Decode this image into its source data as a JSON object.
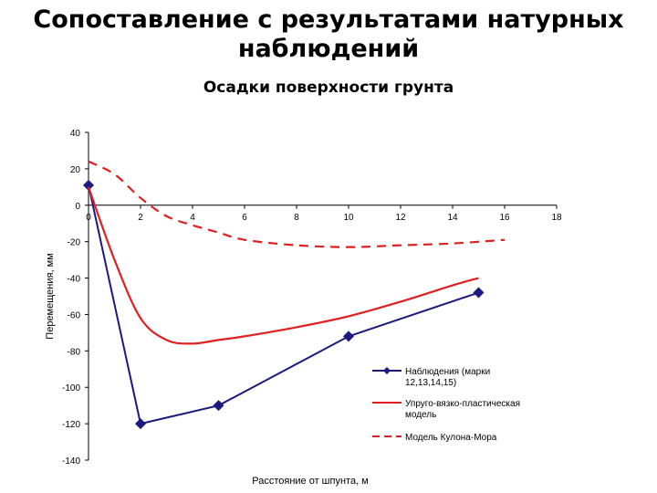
{
  "slide": {
    "title_line1": "Сопоставление с результатами натурных",
    "title_line2": "наблюдений"
  },
  "chart_data": {
    "type": "line",
    "title": "Осадки поверхности грунта",
    "xlabel": "Расстояние от шпунта, м",
    "ylabel": "Перемещения, мм",
    "xlim": [
      0,
      18
    ],
    "ylim": [
      -140,
      40
    ],
    "x_ticks": [
      "0",
      "2",
      "4",
      "6",
      "8",
      "10",
      "12",
      "14",
      "16",
      "18"
    ],
    "y_ticks": [
      "40",
      "20",
      "0",
      "-20",
      "-40",
      "-60",
      "-80",
      "-100",
      "-120",
      "-140"
    ],
    "legend_position": "bottom-right",
    "series": [
      {
        "name": "Наблюдения (марки 12,13,14,15)",
        "color": "#1a1a80",
        "style": "solid-markers",
        "points": [
          [
            0,
            11
          ],
          [
            2,
            -120
          ],
          [
            5,
            -110
          ],
          [
            10,
            -72
          ],
          [
            15,
            -48
          ]
        ]
      },
      {
        "name": "Упруго-вязко-пластическая модель",
        "color": "#e02020",
        "style": "solid",
        "points": [
          [
            0,
            10
          ],
          [
            1,
            -30
          ],
          [
            2,
            -62
          ],
          [
            3,
            -74
          ],
          [
            4,
            -76
          ],
          [
            5,
            -74
          ],
          [
            6,
            -72
          ],
          [
            8,
            -67
          ],
          [
            10,
            -61
          ],
          [
            12,
            -53
          ],
          [
            14,
            -44
          ],
          [
            15,
            -40
          ]
        ]
      },
      {
        "name": "Модель Кулона-Мора",
        "color": "#e02020",
        "style": "dashed",
        "points": [
          [
            0,
            24
          ],
          [
            1,
            17
          ],
          [
            2,
            4
          ],
          [
            3,
            -6
          ],
          [
            4,
            -11
          ],
          [
            5,
            -15
          ],
          [
            6,
            -19
          ],
          [
            8,
            -22
          ],
          [
            10,
            -23
          ],
          [
            12,
            -22
          ],
          [
            14,
            -21
          ],
          [
            16,
            -19
          ]
        ]
      }
    ]
  }
}
